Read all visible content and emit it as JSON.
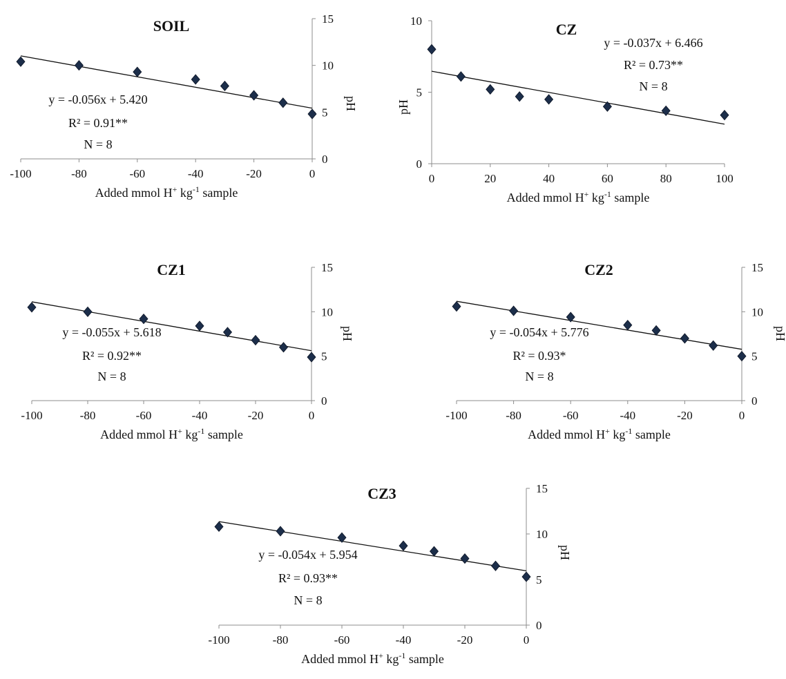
{
  "figure": {
    "colors": {
      "marker": "#1c2e4a",
      "line": "#111111",
      "axis": "#8c8c8c"
    }
  },
  "chart_data": [
    {
      "type": "scatter",
      "title": "SOIL",
      "xlabel": "Added mmol H",
      "xlabel_sup": "+",
      "xlabel_mid": " kg",
      "xlabel_sup2": "-1",
      "xlabel_end": " sample",
      "ylabel": "pH",
      "xlim": [
        -100,
        0
      ],
      "ylim": [
        0,
        15
      ],
      "xticks": [
        "-100",
        "-80",
        "-60",
        "-40",
        "-20",
        "0"
      ],
      "yticks": [
        "0",
        "5",
        "10",
        "15"
      ],
      "y_axis_side": "right",
      "x": [
        -100,
        -80,
        -60,
        -40,
        -30,
        -20,
        -10,
        0
      ],
      "y": [
        10.4,
        10.0,
        9.3,
        8.5,
        7.8,
        6.8,
        6.0,
        4.8
      ],
      "trendline": {
        "slope": -0.056,
        "intercept": 5.42
      },
      "annotations": [
        "y = -0.056x + 5.420",
        "R² = 0.91**",
        "N = 8"
      ]
    },
    {
      "type": "scatter",
      "title": "CZ",
      "xlabel": "Added mmol H",
      "xlabel_sup": "+",
      "xlabel_mid": " kg",
      "xlabel_sup2": "-1",
      "xlabel_end": " sample",
      "ylabel": "pH",
      "xlim": [
        0,
        100
      ],
      "ylim": [
        0,
        10
      ],
      "xticks": [
        "0",
        "20",
        "40",
        "60",
        "80",
        "100"
      ],
      "yticks": [
        "0",
        "5",
        "10"
      ],
      "y_axis_side": "left",
      "x": [
        0,
        10,
        20,
        30,
        40,
        60,
        80,
        100
      ],
      "y": [
        8.0,
        6.1,
        5.2,
        4.7,
        4.5,
        4.0,
        3.7,
        3.4
      ],
      "trendline": {
        "slope": -0.037,
        "intercept": 6.466
      },
      "annotations": [
        "y = -0.037x + 6.466",
        "R² = 0.73**",
        "N = 8"
      ]
    },
    {
      "type": "scatter",
      "title": "CZ1",
      "xlabel": "Added mmol H",
      "xlabel_sup": "+",
      "xlabel_mid": " kg",
      "xlabel_sup2": "-1",
      "xlabel_end": " sample",
      "ylabel": "pH",
      "xlim": [
        -100,
        0
      ],
      "ylim": [
        0,
        15
      ],
      "xticks": [
        "-100",
        "-80",
        "-60",
        "-40",
        "-20",
        "0"
      ],
      "yticks": [
        "0",
        "5",
        "10",
        "15"
      ],
      "y_axis_side": "right",
      "x": [
        -100,
        -80,
        -60,
        -40,
        -30,
        -20,
        -10,
        0
      ],
      "y": [
        10.5,
        10.0,
        9.2,
        8.4,
        7.7,
        6.8,
        6.0,
        4.9
      ],
      "trendline": {
        "slope": -0.055,
        "intercept": 5.618
      },
      "annotations": [
        "y = -0.055x + 5.618",
        "R² = 0.92**",
        "N = 8"
      ]
    },
    {
      "type": "scatter",
      "title": "CZ2",
      "xlabel": "Added mmol H",
      "xlabel_sup": "+",
      "xlabel_mid": " kg",
      "xlabel_sup2": "-1",
      "xlabel_end": " sample",
      "ylabel": "pH",
      "xlim": [
        -100,
        0
      ],
      "ylim": [
        0,
        15
      ],
      "xticks": [
        "-100",
        "-80",
        "-60",
        "-40",
        "-20",
        "0"
      ],
      "yticks": [
        "0",
        "5",
        "10",
        "15"
      ],
      "y_axis_side": "right",
      "x": [
        -100,
        -80,
        -60,
        -40,
        -30,
        -20,
        -10,
        0
      ],
      "y": [
        10.6,
        10.1,
        9.4,
        8.5,
        7.9,
        7.0,
        6.2,
        5.0
      ],
      "trendline": {
        "slope": -0.054,
        "intercept": 5.776
      },
      "annotations": [
        "y = -0.054x + 5.776",
        "R² = 0.93*",
        "N = 8"
      ]
    },
    {
      "type": "scatter",
      "title": "CZ3",
      "xlabel": "Added mmol H",
      "xlabel_sup": "+",
      "xlabel_mid": " kg",
      "xlabel_sup2": "-1",
      "xlabel_end": " sample",
      "ylabel": "pH",
      "xlim": [
        -100,
        0
      ],
      "ylim": [
        0,
        15
      ],
      "xticks": [
        "-100",
        "-80",
        "-60",
        "-40",
        "-20",
        "0"
      ],
      "yticks": [
        "0",
        "5",
        "10",
        "15"
      ],
      "y_axis_side": "right",
      "x": [
        -100,
        -80,
        -60,
        -40,
        -30,
        -20,
        -10,
        0
      ],
      "y": [
        10.8,
        10.3,
        9.6,
        8.7,
        8.1,
        7.3,
        6.5,
        5.3
      ],
      "trendline": {
        "slope": -0.054,
        "intercept": 5.954
      },
      "annotations": [
        "y = -0.054x + 5.954",
        "R² = 0.93**",
        "N = 8"
      ]
    }
  ]
}
